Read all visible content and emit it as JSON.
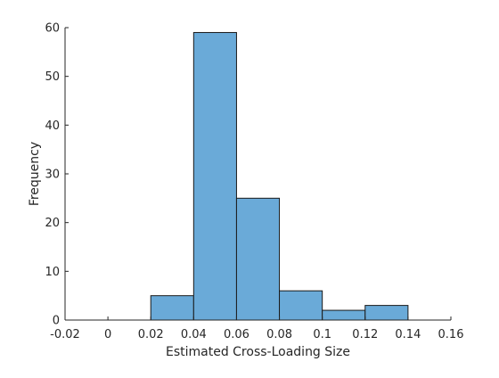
{
  "chart_data": {
    "type": "bar",
    "title": "",
    "xlabel": "Estimated Cross-Loading Size",
    "ylabel": "Frequency",
    "bin_edges": [
      0.02,
      0.04,
      0.06,
      0.08,
      0.1,
      0.12,
      0.14
    ],
    "values": [
      5,
      59,
      25,
      6,
      2,
      3
    ],
    "xlim": [
      -0.02,
      0.16
    ],
    "ylim": [
      0,
      60
    ],
    "xticks": [
      -0.02,
      0,
      0.02,
      0.04,
      0.06,
      0.08,
      0.1,
      0.12,
      0.14,
      0.16
    ],
    "xtick_labels": [
      "-0.02",
      "0",
      "0.02",
      "0.04",
      "0.06",
      "0.08",
      "0.1",
      "0.12",
      "0.14",
      "0.16"
    ],
    "yticks": [
      0,
      10,
      20,
      30,
      40,
      50,
      60
    ],
    "ytick_labels": [
      "0",
      "10",
      "20",
      "30",
      "40",
      "50",
      "60"
    ],
    "grid": false,
    "legend": "none",
    "colors": {
      "bar_fill": "#6aaad8",
      "bar_edge": "#1a1a1a",
      "axis": "#262626",
      "text": "#262626"
    }
  }
}
